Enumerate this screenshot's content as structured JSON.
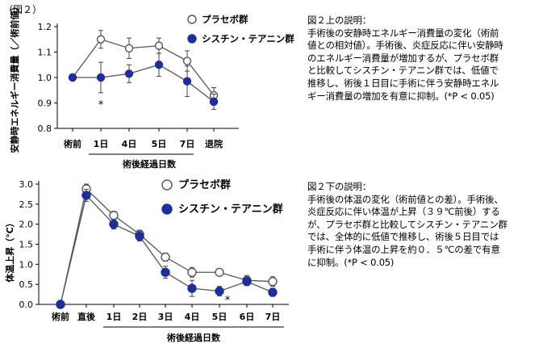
{
  "figure_label": "（図２）",
  "chart_data": [
    {
      "type": "line",
      "ylabel": "安静時エネルギー消費量（／術前値）",
      "xlabel": "術後経過日数",
      "categories": [
        "術前",
        "1日",
        "4日",
        "5日",
        "7日",
        "退院"
      ],
      "ylim": [
        0.8,
        1.2
      ],
      "yticks": [
        "0.8",
        "0.9",
        "1.0",
        "1.1",
        "1.2"
      ],
      "legend_position": "top-right",
      "series": [
        {
          "name": "プラセボ群",
          "marker": "open-circle",
          "values": [
            1.0,
            1.15,
            1.115,
            1.125,
            1.065,
            0.93
          ],
          "errors": [
            0,
            0.035,
            0.04,
            0.03,
            0.04,
            0.03
          ]
        },
        {
          "name": "シスチン・テアニン群",
          "marker": "filled-circle",
          "values": [
            1.0,
            1.0,
            1.015,
            1.05,
            0.985,
            0.905
          ],
          "errors": [
            0,
            0.06,
            0.035,
            0.045,
            0.06,
            0.03
          ]
        }
      ],
      "annotations": [
        {
          "text": "*",
          "category": "1日"
        }
      ]
    },
    {
      "type": "line",
      "ylabel": "体温上昇（℃）",
      "xlabel": "術後経過日数",
      "categories": [
        "術前",
        "直後",
        "1日",
        "2日",
        "3日",
        "4日",
        "5日",
        "6日",
        "7日"
      ],
      "ylim": [
        0.0,
        3.0
      ],
      "yticks": [
        "0.0",
        "0.5",
        "1.0",
        "1.5",
        "2.0",
        "2.5",
        "3.0"
      ],
      "legend_position": "top-right",
      "series": [
        {
          "name": "プラセボ群",
          "marker": "open-circle",
          "values": [
            0.0,
            2.88,
            2.22,
            1.75,
            1.18,
            0.8,
            0.8,
            0.6,
            0.57
          ],
          "errors": [
            0,
            0.12,
            0.1,
            0.1,
            0.1,
            0.12,
            0.08,
            0.12,
            0.12
          ]
        },
        {
          "name": "シスチン・テアニン群",
          "marker": "filled-circle",
          "values": [
            0.0,
            2.72,
            2.0,
            1.7,
            0.8,
            0.4,
            0.33,
            0.57,
            0.3
          ],
          "errors": [
            0,
            0.15,
            0.12,
            0.12,
            0.15,
            0.2,
            0.12,
            0.1,
            0.1
          ]
        }
      ],
      "annotations": [
        {
          "text": "*",
          "category": "5日"
        }
      ]
    }
  ],
  "desc_top": {
    "title": "図２上の説明：",
    "lines": [
      "手術後の安静時エネルギー消費量の変化（術前",
      "値との相対値）。手術後、炎症反応に伴い安静時",
      "のエネルギー消費量が増加するが、プラセボ群",
      "と比較してシスチン・テアニン群では、低値で",
      "推移し、術後１日目に手術に伴う安静時エネル",
      "ギー消費量の増加を有意に抑制。(*P < 0.05)"
    ]
  },
  "desc_bottom": {
    "title": "図２下の説明：",
    "lines": [
      "手術後の体温の変化（術前値との差）。手術後、",
      "炎症反応に伴い体温が上昇（３９℃前後）する",
      "が、プラセボ群と比較してシスチン・テアニン群",
      "では、全体的に低値で推移し、術後５日目では",
      "手術に伴う体温の上昇を約０．５℃の差で有意",
      "に抑制。(*P < 0.05)"
    ]
  }
}
